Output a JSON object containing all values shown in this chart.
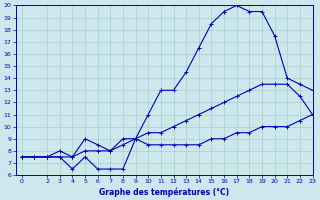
{
  "title": "Graphe des températures (°C)",
  "bg_color": "#cce8ec",
  "grid_color": "#aacccc",
  "line_color": "#0000bb",
  "xlim": [
    -0.5,
    23
  ],
  "ylim": [
    6,
    20
  ],
  "xticks": [
    0,
    2,
    3,
    4,
    5,
    6,
    7,
    8,
    9,
    10,
    11,
    12,
    13,
    14,
    15,
    16,
    17,
    18,
    19,
    20,
    21,
    22,
    23
  ],
  "yticks": [
    6,
    7,
    8,
    9,
    10,
    11,
    12,
    13,
    14,
    15,
    16,
    17,
    18,
    19,
    20
  ],
  "x": [
    0,
    1,
    2,
    3,
    4,
    5,
    6,
    7,
    8,
    9,
    10,
    11,
    12,
    13,
    14,
    15,
    16,
    17,
    18,
    19,
    20,
    21,
    22,
    23
  ],
  "y_top": [
    7.5,
    7.5,
    7.5,
    8.0,
    7.5,
    9.0,
    8.5,
    8.0,
    9.0,
    9.0,
    11.0,
    13.0,
    13.0,
    14.5,
    16.5,
    18.5,
    19.5,
    20.0,
    19.5,
    19.5,
    17.5,
    14.0,
    13.5,
    13.0
  ],
  "y_mid": [
    7.5,
    7.5,
    7.5,
    7.5,
    7.5,
    8.0,
    8.0,
    8.0,
    8.5,
    9.0,
    9.5,
    9.5,
    10.0,
    10.5,
    11.0,
    11.5,
    12.0,
    12.5,
    13.0,
    13.5,
    13.5,
    13.5,
    12.5,
    11.0
  ],
  "y_bot": [
    7.5,
    7.5,
    7.5,
    7.5,
    6.5,
    7.5,
    6.5,
    6.5,
    6.5,
    9.0,
    8.5,
    8.5,
    8.5,
    8.5,
    8.5,
    9.0,
    9.0,
    9.5,
    9.5,
    10.0,
    10.0,
    10.0,
    10.5,
    11.0
  ]
}
